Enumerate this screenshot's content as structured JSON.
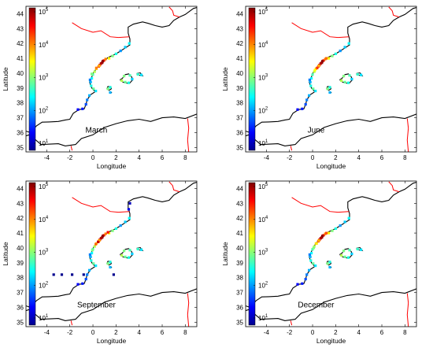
{
  "panels": [
    {
      "title": "March"
    },
    {
      "title": "June"
    },
    {
      "title": "September"
    },
    {
      "title": "December"
    }
  ],
  "axes": {
    "xlabel": "Longitude",
    "ylabel": "Latitude",
    "x_ticks": [
      "-4",
      "-2",
      "0",
      "2",
      "4",
      "6",
      "8"
    ],
    "y_ticks": [
      "35",
      "36",
      "37",
      "38",
      "39",
      "40",
      "41",
      "42",
      "43",
      "44"
    ],
    "xlim": [
      -5.8,
      9.0
    ],
    "ylim": [
      34.7,
      44.5
    ]
  },
  "colorbar": {
    "scale": "log",
    "range": [
      10,
      100000
    ],
    "labels": [
      {
        "base": "10",
        "exp": "5"
      },
      {
        "base": "10",
        "exp": "4"
      },
      {
        "base": "10",
        "exp": "3"
      },
      {
        "base": "10",
        "exp": "2"
      },
      {
        "base": "10",
        "exp": "1"
      }
    ],
    "colors": [
      "#00008f",
      "#0000ff",
      "#007fff",
      "#00ffff",
      "#7fff7f",
      "#ffff00",
      "#ff7f00",
      "#ff0000",
      "#7f0000"
    ]
  },
  "colors": {
    "coastline": "#000000",
    "borders": "#ff0000"
  }
}
